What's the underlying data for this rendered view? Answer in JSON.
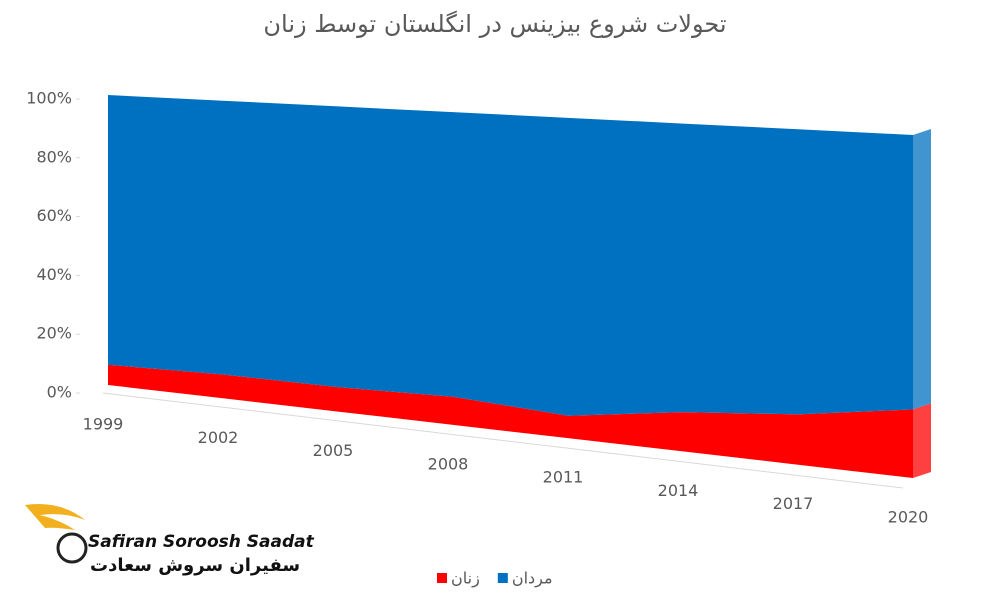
{
  "chart_data": {
    "type": "area",
    "stacked": true,
    "title": "تحولات شروع بیزینس در انگلستان توسط زنان",
    "categories": [
      "1999",
      "2002",
      "2005",
      "2008",
      "2011",
      "2014",
      "2017",
      "2020"
    ],
    "series": [
      {
        "name": "زنان",
        "color": "#ff0000",
        "values": [
          7,
          8,
          8,
          9,
          7,
          12,
          15,
          20
        ]
      },
      {
        "name": "مردان",
        "color": "#0070c0",
        "values": [
          93,
          92,
          92,
          91,
          93,
          88,
          85,
          80
        ]
      }
    ],
    "ylim": [
      0,
      100
    ],
    "yticks": [
      {
        "value": 0,
        "label": "0%"
      },
      {
        "value": 20,
        "label": "20%"
      },
      {
        "value": 40,
        "label": "40%"
      },
      {
        "value": 60,
        "label": "60%"
      },
      {
        "value": 80,
        "label": "80%"
      },
      {
        "value": 100,
        "label": "100%"
      }
    ],
    "grid": false,
    "legend": "bottom"
  },
  "logo": {
    "latin": "Safiran Soroosh Saadat",
    "persian": "سفیران سروش سعادت"
  }
}
